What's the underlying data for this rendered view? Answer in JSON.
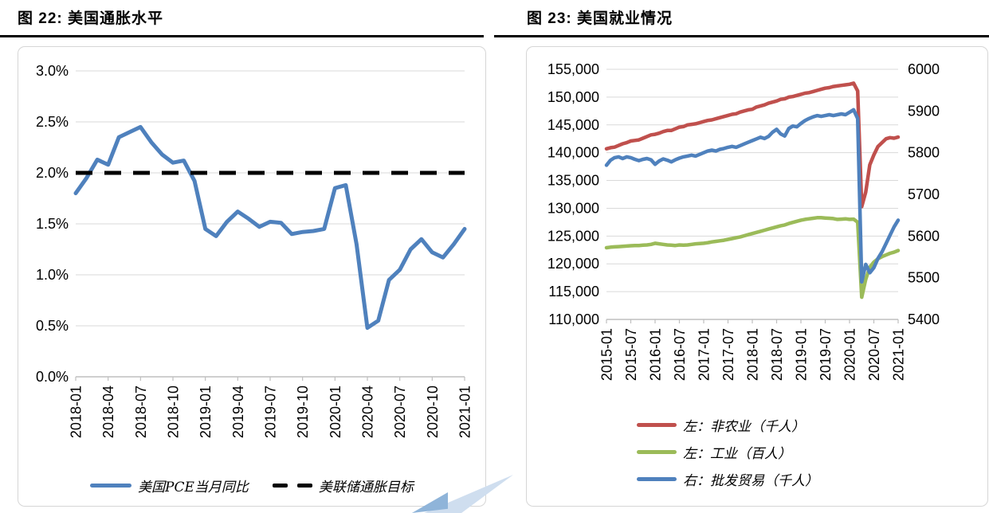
{
  "page": {
    "background": "#ffffff",
    "watermark": {
      "light": "#cfdeef",
      "dark": "#8fb4d9"
    }
  },
  "chart_data": [
    {
      "type": "line",
      "title": "图 22: 美国通胀水平",
      "x_monthly_range": "2018-01 to 2021-01",
      "x_tick_labels": [
        "2018-01",
        "2018-04",
        "2018-07",
        "2018-10",
        "2019-01",
        "2019-04",
        "2019-07",
        "2019-10",
        "2020-01",
        "2020-04",
        "2020-07",
        "2020-10",
        "2021-01"
      ],
      "y_axis": {
        "min": 0,
        "max": 3,
        "ticks": [
          "3.0%",
          "2.5%",
          "2.0%",
          "1.5%",
          "1.0%",
          "0.5%",
          "0.0%"
        ]
      },
      "grid": true,
      "legend_position": "bottom-center",
      "series": [
        {
          "name": "美国PCE当月同比",
          "axis": "left",
          "color": "#4F81BD",
          "style": "solid",
          "values": [
            1.8,
            1.95,
            2.13,
            2.08,
            2.35,
            2.4,
            2.45,
            2.3,
            2.18,
            2.1,
            2.12,
            1.92,
            1.45,
            1.38,
            1.52,
            1.62,
            1.55,
            1.47,
            1.52,
            1.51,
            1.4,
            1.42,
            1.43,
            1.45,
            1.85,
            1.88,
            1.3,
            0.48,
            0.55,
            0.95,
            1.05,
            1.25,
            1.35,
            1.22,
            1.17,
            1.3,
            1.45
          ]
        },
        {
          "name": "美联储通胀目标",
          "axis": "left",
          "color": "#000000",
          "style": "dashed",
          "constant": 2.0
        }
      ]
    },
    {
      "type": "line",
      "title": "图 23: 美国就业情况",
      "x_monthly_range": "2015-01 to 2021-01",
      "x_tick_labels": [
        "2015-01",
        "2015-07",
        "2016-01",
        "2016-07",
        "2017-01",
        "2017-07",
        "2018-01",
        "2018-07",
        "2019-01",
        "2019-07",
        "2020-01",
        "2020-07",
        "2021-01"
      ],
      "y_axis_left": {
        "min": 110000,
        "max": 155000,
        "ticks": [
          "155,000",
          "150,000",
          "145,000",
          "140,000",
          "135,000",
          "130,000",
          "125,000",
          "120,000",
          "115,000",
          "110,000"
        ]
      },
      "y_axis_right": {
        "min": 5400,
        "max": 6000,
        "ticks": [
          "6000",
          "5900",
          "5800",
          "5700",
          "5600",
          "5500",
          "5400"
        ]
      },
      "grid": true,
      "legend_position": "bottom-left",
      "series": [
        {
          "name": "左：非农业（千人）",
          "axis": "left",
          "color": "#C0504D",
          "style": "solid",
          "values": [
            140700,
            140900,
            141000,
            141300,
            141600,
            141800,
            142100,
            142200,
            142300,
            142600,
            142900,
            143200,
            143300,
            143500,
            143800,
            144000,
            144000,
            144300,
            144600,
            144700,
            145000,
            145100,
            145200,
            145400,
            145600,
            145800,
            145900,
            146100,
            146300,
            146500,
            146700,
            146900,
            147000,
            147300,
            147500,
            147700,
            147800,
            148200,
            148400,
            148600,
            148900,
            149100,
            149300,
            149600,
            149700,
            150000,
            150100,
            150300,
            150500,
            150700,
            150800,
            151000,
            151200,
            151400,
            151600,
            151700,
            151900,
            152000,
            152100,
            152200,
            152300,
            152500,
            151100,
            130300,
            132900,
            137800,
            139600,
            141100,
            141800,
            142500,
            142700,
            142600,
            142800
          ]
        },
        {
          "name": "左：工业（百人）",
          "axis": "left",
          "color": "#9BBB59",
          "style": "solid",
          "values": [
            122900,
            123000,
            123050,
            123100,
            123150,
            123200,
            123250,
            123300,
            123300,
            123350,
            123400,
            123500,
            123700,
            123600,
            123500,
            123400,
            123350,
            123300,
            123400,
            123350,
            123400,
            123500,
            123600,
            123650,
            123700,
            123800,
            123950,
            124050,
            124150,
            124250,
            124400,
            124550,
            124700,
            124850,
            125050,
            125250,
            125450,
            125650,
            125850,
            126050,
            126250,
            126450,
            126650,
            126850,
            127000,
            127250,
            127450,
            127650,
            127850,
            128000,
            128100,
            128200,
            128300,
            128300,
            128250,
            128200,
            128150,
            128000,
            128050,
            128100,
            128000,
            128050,
            127500,
            114000,
            117200,
            119400,
            120300,
            120900,
            121300,
            121600,
            121900,
            122100,
            122400
          ]
        },
        {
          "name": "右：批发贸易（千人）",
          "axis": "right",
          "color": "#4F81BD",
          "style": "solid",
          "values": [
            5770,
            5782,
            5788,
            5790,
            5786,
            5790,
            5788,
            5784,
            5781,
            5784,
            5786,
            5783,
            5772,
            5780,
            5785,
            5782,
            5778,
            5783,
            5787,
            5790,
            5792,
            5794,
            5792,
            5796,
            5800,
            5804,
            5806,
            5804,
            5808,
            5810,
            5813,
            5815,
            5813,
            5817,
            5821,
            5825,
            5829,
            5833,
            5837,
            5834,
            5839,
            5849,
            5856,
            5845,
            5840,
            5858,
            5864,
            5862,
            5870,
            5877,
            5882,
            5886,
            5889,
            5887,
            5889,
            5891,
            5889,
            5891,
            5893,
            5891,
            5897,
            5903,
            5882,
            5490,
            5532,
            5512,
            5524,
            5546,
            5562,
            5582,
            5602,
            5622,
            5638
          ]
        }
      ]
    }
  ]
}
